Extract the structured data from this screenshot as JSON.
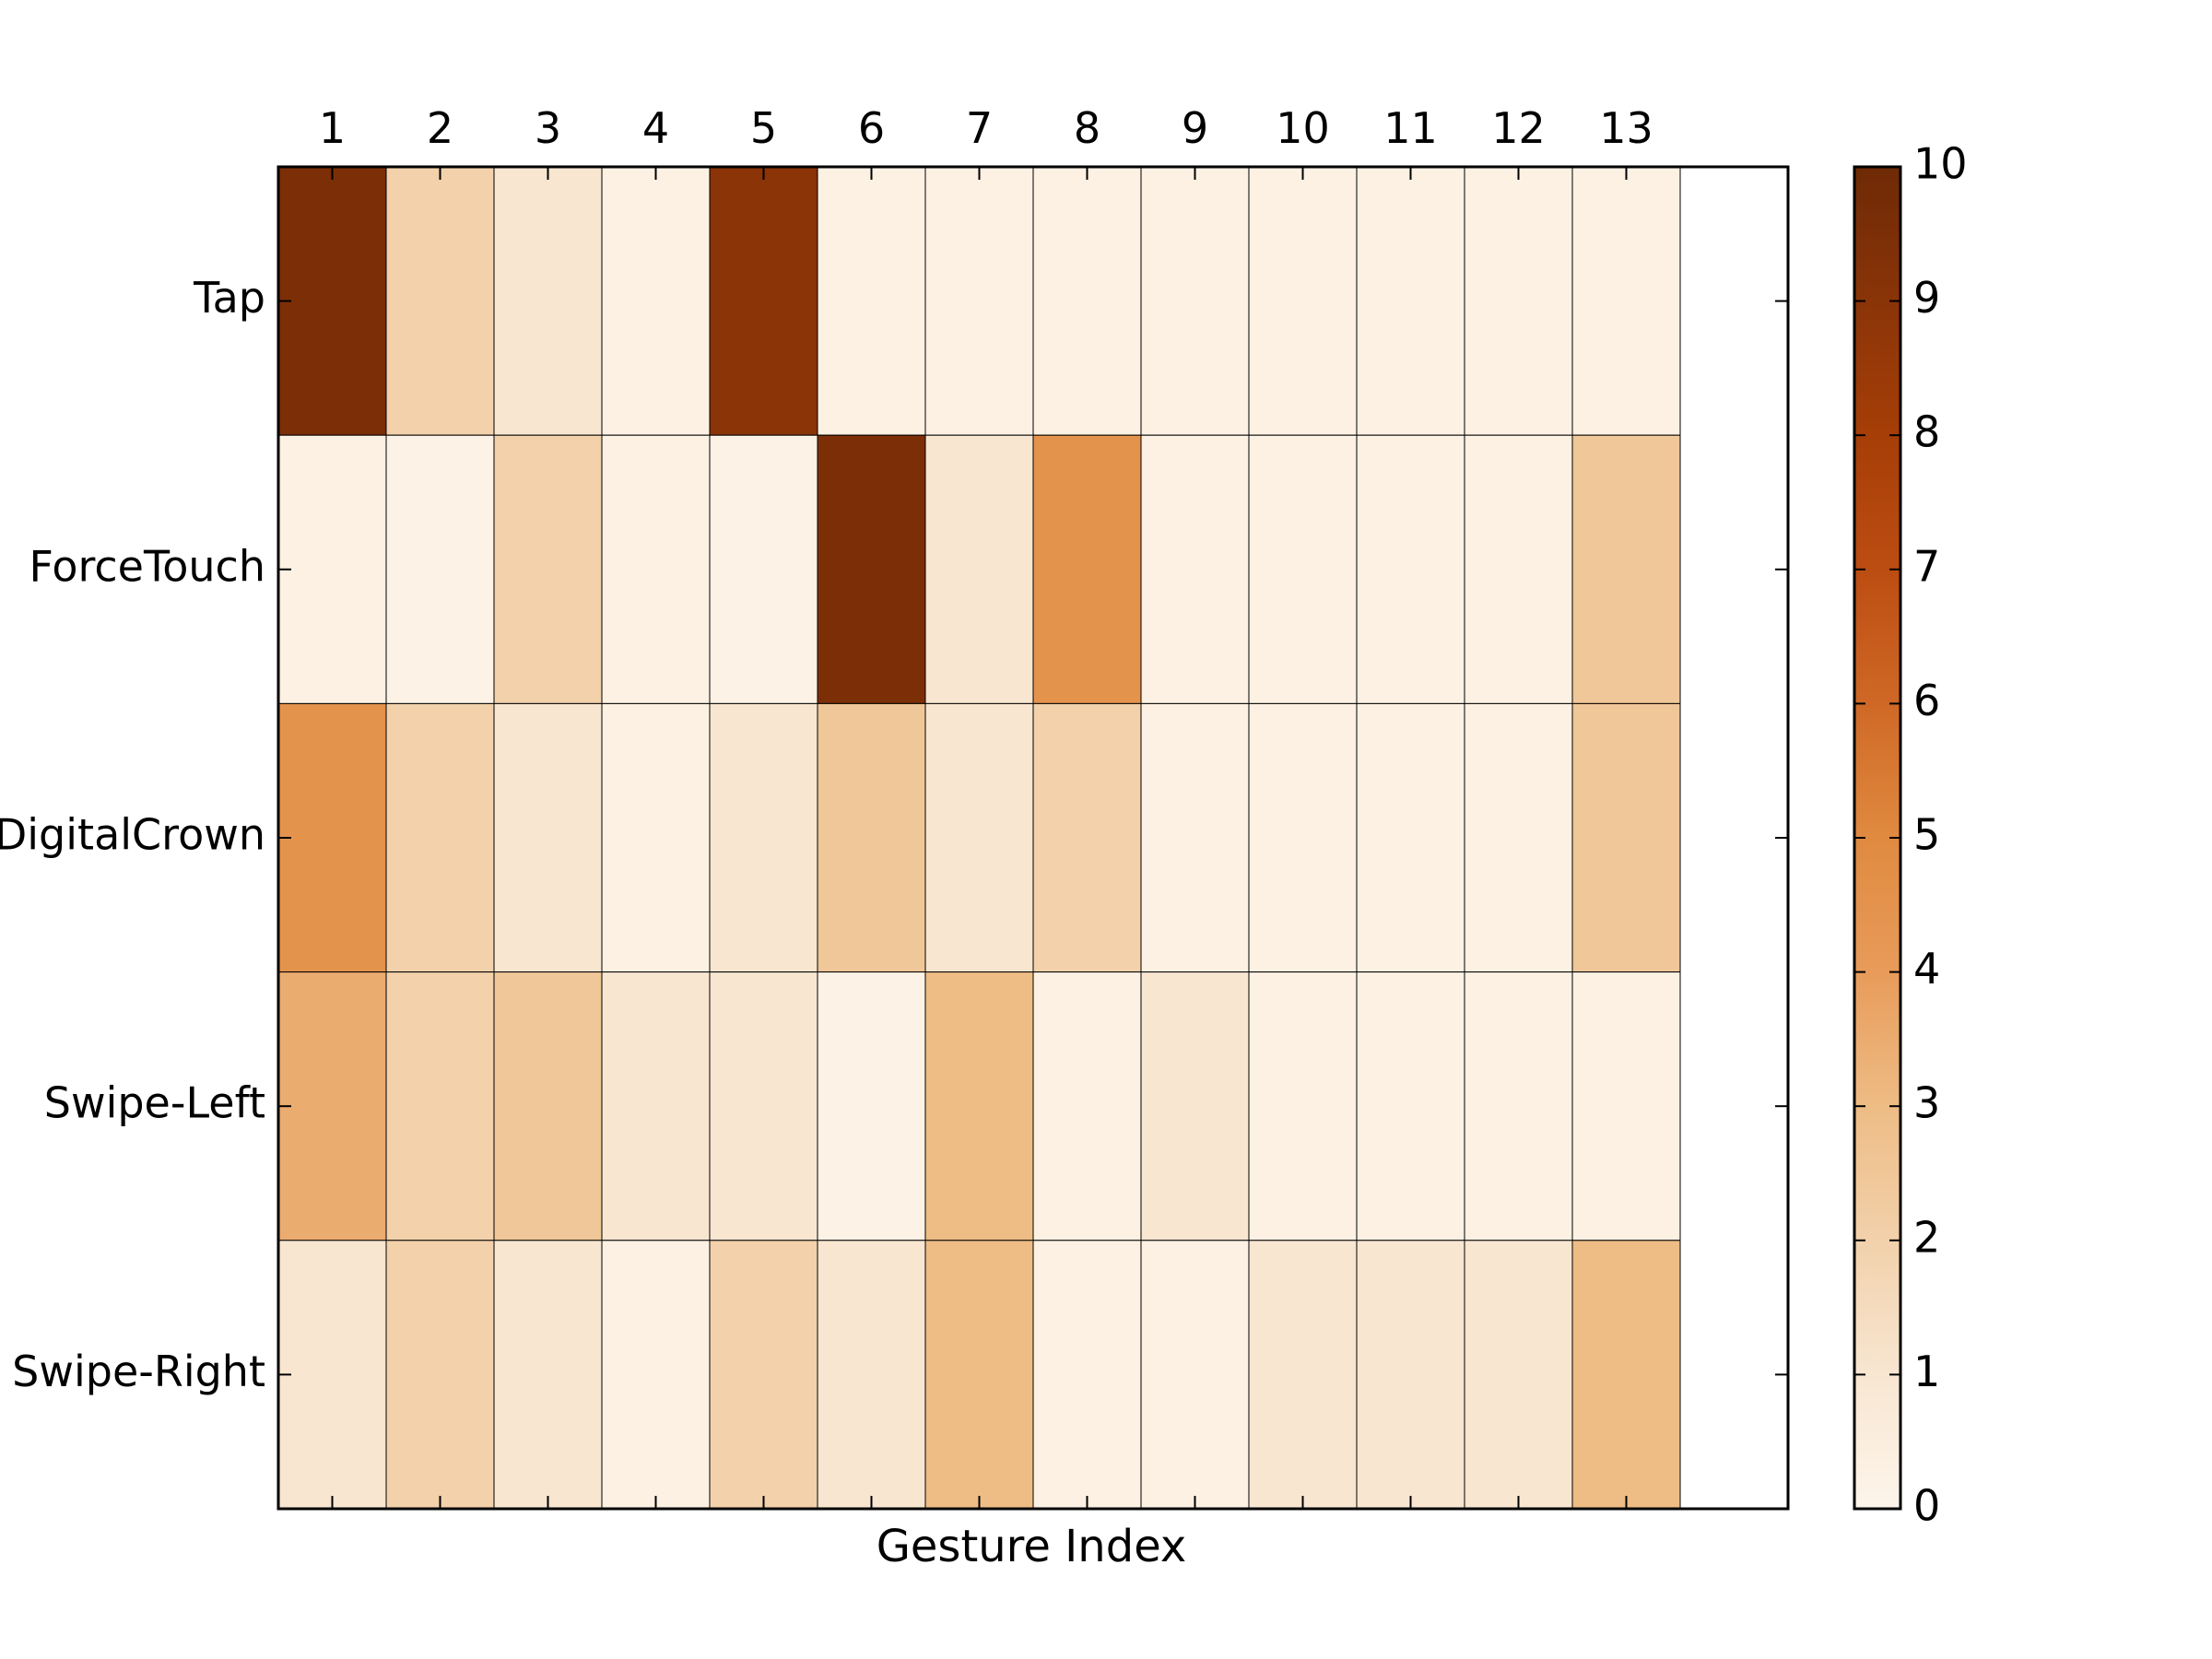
{
  "chart_data": {
    "type": "heatmap",
    "title": "",
    "xlabel": "Gesture Index",
    "ylabel": "",
    "x_categories": [
      "1",
      "2",
      "3",
      "4",
      "5",
      "6",
      "7",
      "8",
      "9",
      "10",
      "11",
      "12",
      "13"
    ],
    "y_categories": [
      "Tap",
      "ForceTouch",
      "DigitalCrown",
      "Swipe-Left",
      "Swipe-Right"
    ],
    "values": [
      [
        9.5,
        2.0,
        1.0,
        0.3,
        9.0,
        0.3,
        0.3,
        0.3,
        0.3,
        0.3,
        0.3,
        0.3,
        0.3
      ],
      [
        0.3,
        0.2,
        2.0,
        0.3,
        0.2,
        9.5,
        1.0,
        4.5,
        0.3,
        0.3,
        0.3,
        0.3,
        2.5
      ],
      [
        4.5,
        2.0,
        1.0,
        0.3,
        1.0,
        2.5,
        1.0,
        2.0,
        0.3,
        0.3,
        0.3,
        0.3,
        2.5
      ],
      [
        3.5,
        2.0,
        2.5,
        1.0,
        1.0,
        0.2,
        3.0,
        0.3,
        1.0,
        0.3,
        0.3,
        0.3,
        0.3
      ],
      [
        1.0,
        2.0,
        1.0,
        0.3,
        2.0,
        1.0,
        3.0,
        0.3,
        0.3,
        1.0,
        1.0,
        1.0,
        3.0
      ]
    ],
    "xlim": [
      0.5,
      14.5
    ],
    "colorbar": {
      "range": [
        0,
        10
      ],
      "ticks": [
        "0",
        "1",
        "2",
        "3",
        "4",
        "5",
        "6",
        "7",
        "8",
        "9",
        "10"
      ],
      "colormap": [
        "#fdf5eb",
        "#f8e6d1",
        "#f2d1ab",
        "#eebc85",
        "#e89b5a",
        "#e08a40",
        "#cf6826",
        "#bc4d12",
        "#a63e07",
        "#8a3408",
        "#6e2a06"
      ]
    },
    "grid": false,
    "legend": "none"
  }
}
